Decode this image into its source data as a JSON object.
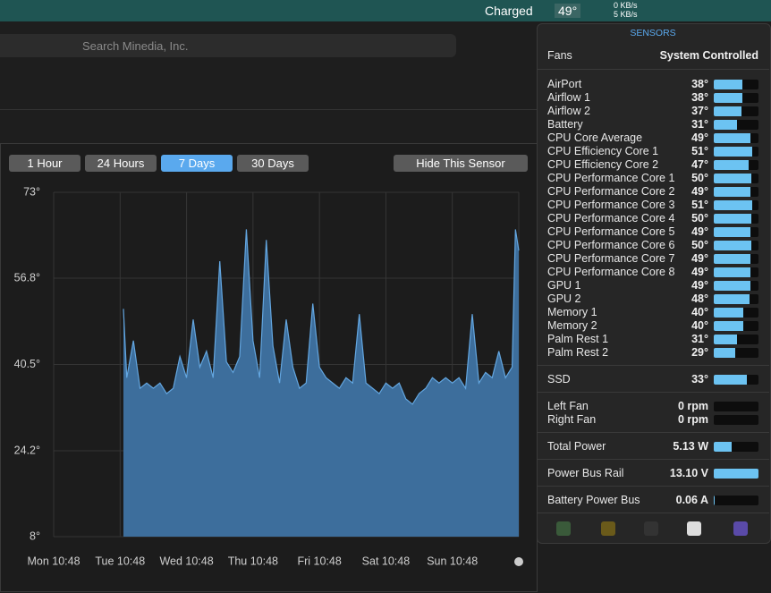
{
  "menubar": {
    "battery": "Charged",
    "temp": "49°",
    "net_up": "0 KB/s",
    "net_down": "5 KB/s"
  },
  "search": {
    "placeholder": "Search Minedia, Inc."
  },
  "chart_panel": {
    "ranges": [
      "1 Hour",
      "24 Hours",
      "7 Days",
      "30 Days"
    ],
    "selected_range": 2,
    "hide_button": "Hide This Sensor"
  },
  "chart_data": {
    "type": "area",
    "color": "#3d6e9c",
    "line_color": "#63a6e0",
    "grid": true,
    "xlim": [
      0,
      7
    ],
    "ylim": [
      8,
      73
    ],
    "yticks": [
      {
        "value": 73,
        "label": "73°"
      },
      {
        "value": 56.8,
        "label": "56.8°"
      },
      {
        "value": 40.5,
        "label": "40.5°"
      },
      {
        "value": 24.2,
        "label": "24.2°"
      },
      {
        "value": 8,
        "label": "8°"
      }
    ],
    "xticks": [
      {
        "value": 0,
        "label": "Mon 10:48"
      },
      {
        "value": 1,
        "label": "Tue 10:48"
      },
      {
        "value": 2,
        "label": "Wed 10:48"
      },
      {
        "value": 3,
        "label": "Thu 10:48"
      },
      {
        "value": 4,
        "label": "Fri 10:48"
      },
      {
        "value": 5,
        "label": "Sat 10:48"
      },
      {
        "value": 6,
        "label": "Sun 10:48"
      }
    ],
    "x": [
      1.05,
      1.1,
      1.2,
      1.3,
      1.4,
      1.5,
      1.6,
      1.7,
      1.8,
      1.9,
      2.0,
      2.1,
      2.2,
      2.3,
      2.4,
      2.5,
      2.6,
      2.7,
      2.8,
      2.9,
      3.0,
      3.1,
      3.2,
      3.3,
      3.4,
      3.5,
      3.6,
      3.7,
      3.8,
      3.9,
      4.0,
      4.1,
      4.2,
      4.3,
      4.4,
      4.5,
      4.6,
      4.7,
      4.8,
      4.9,
      5.0,
      5.1,
      5.2,
      5.3,
      5.4,
      5.5,
      5.6,
      5.7,
      5.8,
      5.9,
      6.0,
      6.1,
      6.2,
      6.3,
      6.4,
      6.5,
      6.6,
      6.7,
      6.8,
      6.9,
      6.95,
      7.0
    ],
    "values": [
      51,
      38,
      45,
      36,
      37,
      36,
      37,
      35,
      36,
      42,
      38,
      49,
      40,
      43,
      38,
      60,
      41,
      39,
      42,
      66,
      45,
      38,
      64,
      44,
      37,
      49,
      40,
      36,
      37,
      52,
      40,
      38,
      37,
      36,
      38,
      37,
      50,
      37,
      36,
      35,
      37,
      36,
      37,
      34,
      33,
      35,
      36,
      38,
      37,
      38,
      37,
      38,
      36,
      50,
      37,
      39,
      38,
      43,
      38,
      40,
      66,
      62
    ]
  },
  "sensors": {
    "title": "SENSORS",
    "fans_label": "Fans",
    "fans_mode": "System Controlled",
    "temperatures": [
      {
        "name": "AirPort",
        "value": "38°"
      },
      {
        "name": "Airflow 1",
        "value": "38°"
      },
      {
        "name": "Airflow 2",
        "value": "37°"
      },
      {
        "name": "Battery",
        "value": "31°"
      },
      {
        "name": "CPU Core Average",
        "value": "49°"
      },
      {
        "name": "CPU Efficiency Core 1",
        "value": "51°"
      },
      {
        "name": "CPU Efficiency Core 2",
        "value": "47°"
      },
      {
        "name": "CPU Performance Core 1",
        "value": "50°"
      },
      {
        "name": "CPU Performance Core 2",
        "value": "49°"
      },
      {
        "name": "CPU Performance Core 3",
        "value": "51°"
      },
      {
        "name": "CPU Performance Core 4",
        "value": "50°"
      },
      {
        "name": "CPU Performance Core 5",
        "value": "49°"
      },
      {
        "name": "CPU Performance Core 6",
        "value": "50°"
      },
      {
        "name": "CPU Performance Core 7",
        "value": "49°"
      },
      {
        "name": "CPU Performance Core 8",
        "value": "49°"
      },
      {
        "name": "GPU 1",
        "value": "49°"
      },
      {
        "name": "GPU 2",
        "value": "48°"
      },
      {
        "name": "Memory 1",
        "value": "40°"
      },
      {
        "name": "Memory 2",
        "value": "40°"
      },
      {
        "name": "Palm Rest 1",
        "value": "31°"
      },
      {
        "name": "Palm Rest 2",
        "value": "29°"
      }
    ],
    "ssd": {
      "name": "SSD",
      "value": "33°"
    },
    "fans": [
      {
        "name": "Left Fan",
        "value": "0 rpm"
      },
      {
        "name": "Right Fan",
        "value": "0 rpm"
      }
    ],
    "power": [
      {
        "name": "Total Power",
        "value": "5.13 W"
      },
      {
        "name": "Power Bus Rail",
        "value": "13.10 V"
      },
      {
        "name": "Battery Power Bus",
        "value": "0.06 A"
      }
    ]
  }
}
